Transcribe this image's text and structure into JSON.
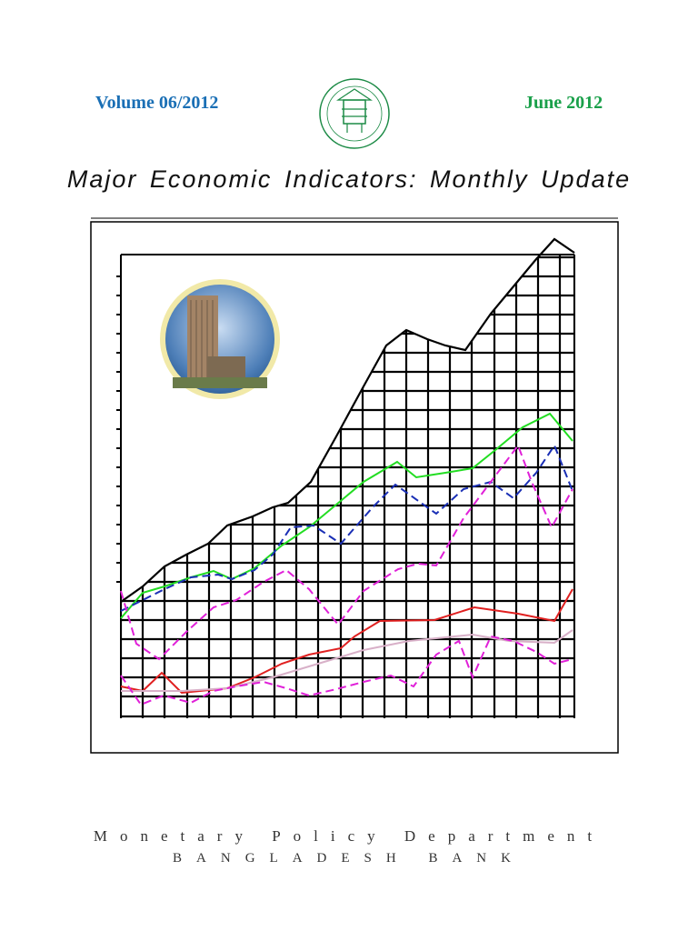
{
  "header": {
    "volume": "Volume 06/2012",
    "date": "June 2012"
  },
  "title": "Major Economic Indicators: Monthly Update",
  "footer": {
    "department": "Monetary Policy Department",
    "bank": "BANGLADESH BANK"
  }
}
